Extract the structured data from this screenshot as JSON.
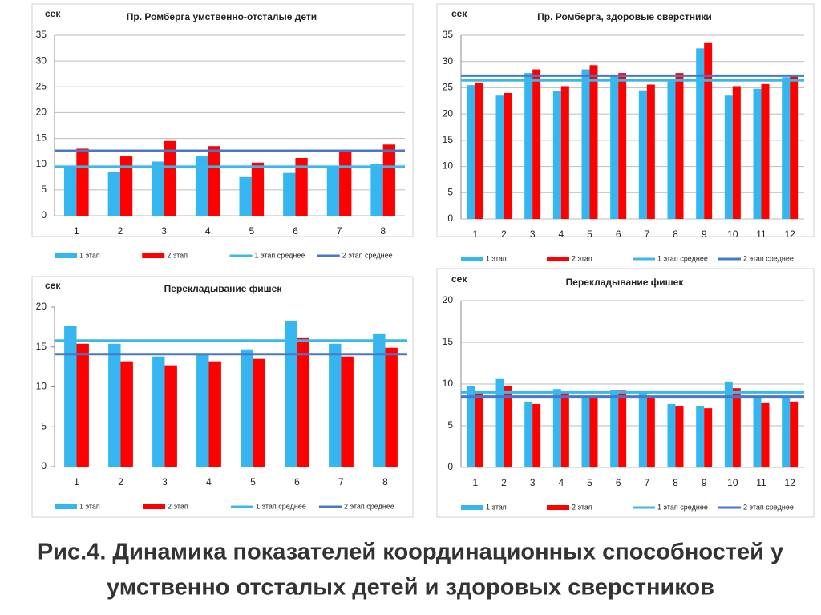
{
  "chart_data": [
    {
      "type": "bar",
      "title": "Пр. Ромберга умственно-отсталые дети",
      "y_label": "сек",
      "categories": [
        "1",
        "2",
        "3",
        "4",
        "5",
        "6",
        "7",
        "8"
      ],
      "ylim": [
        0,
        35
      ],
      "yticks": [
        0,
        5,
        10,
        15,
        20,
        25,
        30,
        35
      ],
      "grid": true,
      "series": [
        {
          "name": "1 этап",
          "color": "#35b6f0",
          "values": [
            9.5,
            8.5,
            10.5,
            11.5,
            7.5,
            8.3,
            9.5,
            10
          ]
        },
        {
          "name": "2 этап",
          "color": "#ff0000",
          "values": [
            13,
            11.5,
            14.5,
            13.5,
            10.3,
            11.2,
            12.5,
            13.8
          ]
        },
        {
          "name": "1 этап среднее",
          "color": "#3cb8e8",
          "mark": "hline",
          "value": 9.5
        },
        {
          "name": "2 этап среднее",
          "color": "#4a78c8",
          "mark": "hline",
          "value": 12.6
        }
      ]
    },
    {
      "type": "bar",
      "title": "Пр. Ромберга,  здоровые сверстники",
      "y_label": "сек",
      "categories": [
        "1",
        "2",
        "3",
        "4",
        "5",
        "6",
        "7",
        "8",
        "9",
        "10",
        "11",
        "12"
      ],
      "ylim": [
        0,
        35
      ],
      "yticks": [
        0,
        5,
        10,
        15,
        20,
        25,
        30,
        35
      ],
      "grid": true,
      "series": [
        {
          "name": "1 этап",
          "color": "#35b6f0",
          "values": [
            25.5,
            23.5,
            27.8,
            24.3,
            28.5,
            27.5,
            24.5,
            26.5,
            32.5,
            23.5,
            24.8,
            27
          ]
        },
        {
          "name": "2 этап",
          "color": "#ff0000",
          "values": [
            26,
            24,
            28.5,
            25.3,
            29.3,
            27.8,
            25.6,
            27.8,
            33.5,
            25.3,
            25.7,
            27.3
          ]
        },
        {
          "name": "1 этап среднее",
          "color": "#3cb8e8",
          "mark": "hline",
          "value": 26.4
        },
        {
          "name": "2 этап среднее",
          "color": "#4a78c8",
          "mark": "hline",
          "value": 27.3
        }
      ]
    },
    {
      "type": "bar",
      "title": "Перекладывание фишек",
      "y_label": "сек",
      "categories": [
        "1",
        "2",
        "3",
        "4",
        "5",
        "6",
        "7",
        "8"
      ],
      "ylim": [
        0,
        20
      ],
      "yticks": [
        0,
        5,
        10,
        15,
        20
      ],
      "grid": false,
      "series": [
        {
          "name": "1 этап",
          "color": "#35b6f0",
          "values": [
            17.6,
            15.4,
            13.8,
            14.1,
            14.7,
            18.3,
            15.4,
            16.7
          ]
        },
        {
          "name": "2 этап",
          "color": "#ff0000",
          "values": [
            15.4,
            13.2,
            12.7,
            13.2,
            13.5,
            16.2,
            13.8,
            14.9
          ]
        },
        {
          "name": "1 этап среднее",
          "color": "#3cb8e8",
          "mark": "hline",
          "value": 15.8
        },
        {
          "name": "2 этап среднее",
          "color": "#4a78c8",
          "mark": "hline",
          "value": 14.1
        }
      ]
    },
    {
      "type": "bar",
      "title": "Перекладывание  фишек",
      "y_label": "сек",
      "categories": [
        "1",
        "2",
        "3",
        "4",
        "5",
        "6",
        "7",
        "8",
        "9",
        "10",
        "11",
        "12"
      ],
      "ylim": [
        0,
        20
      ],
      "yticks": [
        0,
        5,
        10,
        15,
        20
      ],
      "grid": true,
      "series": [
        {
          "name": "1 этап",
          "color": "#35b6f0",
          "values": [
            9.8,
            10.6,
            7.9,
            9.4,
            8.6,
            9.3,
            8.9,
            7.6,
            7.4,
            10.3,
            8.6,
            8.5
          ]
        },
        {
          "name": "2 этап",
          "color": "#ff0000",
          "values": [
            9.1,
            9.8,
            7.6,
            9.1,
            8.4,
            9.2,
            8.6,
            7.4,
            7.1,
            9.5,
            7.8,
            7.9
          ]
        },
        {
          "name": "1 этап среднее",
          "color": "#3cb8e8",
          "mark": "hline",
          "value": 9.0
        },
        {
          "name": "2 этап среднее",
          "color": "#4a78c8",
          "mark": "hline",
          "value": 8.5
        }
      ]
    }
  ],
  "caption": {
    "line1": "Рис.4. Динамика показателей координационных способностей у",
    "line2": "умственно отсталых детей и здоровых сверстников"
  }
}
